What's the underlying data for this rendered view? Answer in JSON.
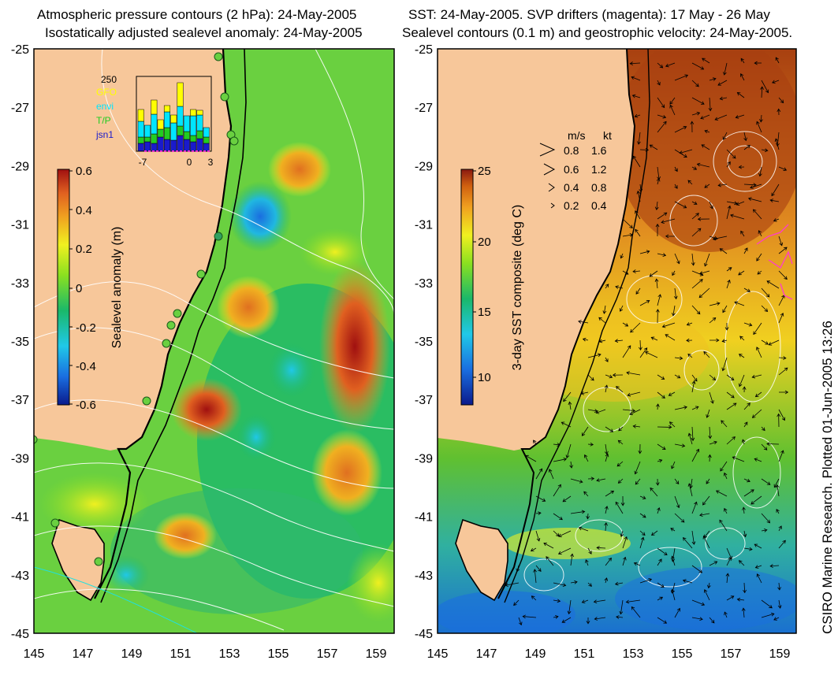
{
  "left_panel": {
    "title_line1": "Atmospheric pressure contours (2 hPa): 24-May-2005",
    "title_line2": "Isostatically adjusted sealevel anomaly: 24-May-2005",
    "colorbar_label": "Sealevel anomaly (m)",
    "colorbar_ticks": [
      "0.6",
      "0.4",
      "0.2",
      "0",
      "-0.2",
      "-0.4",
      "-0.6"
    ],
    "inset": {
      "ymax_label": "250",
      "legend": [
        {
          "label": "GFO",
          "color": "#ffff00"
        },
        {
          "label": "envi",
          "color": "#00e5ff"
        },
        {
          "label": "T/P",
          "color": "#22cc22"
        },
        {
          "label": "jsn1",
          "color": "#1a1acc"
        }
      ],
      "x_ticks": [
        "-7",
        "0",
        "3"
      ]
    }
  },
  "right_panel": {
    "title_line1": "SST: 24-May-2005. SVP drifters (magenta): 17 May - 26 May",
    "title_line2": "Sealevel contours (0.1 m) and geostrophic velocity: 24-May-2005.",
    "colorbar_label": "3-day SST composite (deg C)",
    "colorbar_ticks": [
      "25",
      "20",
      "15",
      "10"
    ],
    "speed_legend": {
      "header_ms": "m/s",
      "header_kt": "kt",
      "rows": [
        {
          "ms": "0.8",
          "kt": "1.6"
        },
        {
          "ms": "0.6",
          "kt": "1.2"
        },
        {
          "ms": "0.4",
          "kt": "0.8"
        },
        {
          "ms": "0.2",
          "kt": "0.4"
        }
      ]
    }
  },
  "axes": {
    "lat_labels": [
      "-25",
      "-27",
      "-29",
      "-31",
      "-33",
      "-35",
      "-37",
      "-39",
      "-41",
      "-43",
      "-45"
    ],
    "lon_labels": [
      "145",
      "147",
      "149",
      "151",
      "153",
      "155",
      "157",
      "159"
    ]
  },
  "colors": {
    "land": "#f7c79a",
    "sla_scale": [
      "#0a1a8c",
      "#1a6ee0",
      "#20c8e8",
      "#1ab86a",
      "#8ae020",
      "#f0f020",
      "#f0a020",
      "#e06020",
      "#a01010"
    ],
    "sst_scale": [
      "#0a1a8c",
      "#1a6ee0",
      "#20c8e8",
      "#1ab86a",
      "#8ae020",
      "#f0f020",
      "#f0a020",
      "#d06010",
      "#8a1a10"
    ],
    "drifter": "#ff3ccc"
  },
  "credit": "CSIRO Marine Research. Plotted 01-Jun-2005 13:26"
}
